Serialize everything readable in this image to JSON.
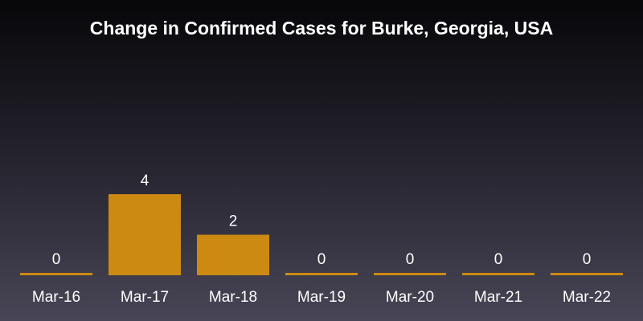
{
  "chart_data": {
    "type": "bar",
    "title": "Change in Confirmed Cases for Burke, Georgia, USA",
    "categories": [
      "Mar-16",
      "Mar-17",
      "Mar-18",
      "Mar-19",
      "Mar-20",
      "Mar-21",
      "Mar-22"
    ],
    "values": [
      0,
      4,
      2,
      0,
      0,
      0,
      0
    ],
    "xlabel": "",
    "ylabel": "",
    "ylim": [
      0,
      4
    ],
    "grid": false,
    "bar_color": "#cc8a12"
  }
}
